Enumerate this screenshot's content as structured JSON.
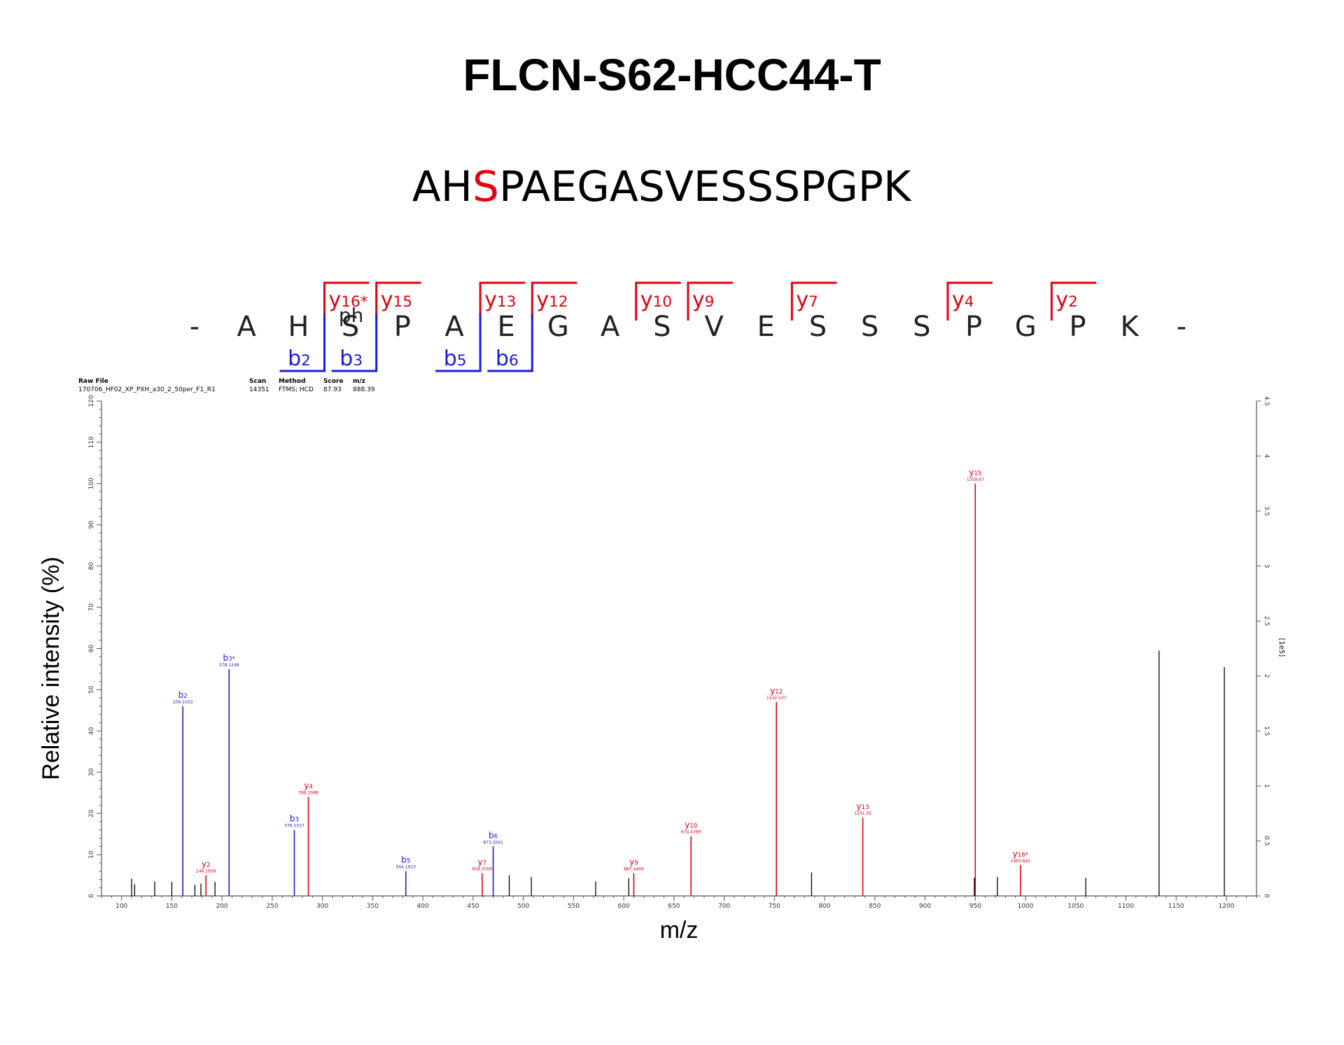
{
  "title": "FLCN-S62-HCC44-T",
  "sequence": {
    "prefix": "AH",
    "mod_residue": "S",
    "suffix": "PAEGASVESSSPGPK"
  },
  "fragment_map": {
    "residues": [
      "-",
      "A",
      "H",
      "S",
      "P",
      "A",
      "E",
      "G",
      "A",
      "S",
      "V",
      "E",
      "S",
      "S",
      "S",
      "P",
      "G",
      "P",
      "K",
      "-"
    ],
    "mod_label": "ph",
    "y_ions": [
      {
        "label": "y16*",
        "before": 3
      },
      {
        "label": "y15",
        "before": 4
      },
      {
        "label": "y13",
        "before": 6
      },
      {
        "label": "y12",
        "before": 7
      },
      {
        "label": "y10",
        "before": 9
      },
      {
        "label": "y9",
        "before": 10
      },
      {
        "label": "y7",
        "before": 12
      },
      {
        "label": "y4",
        "before": 15
      },
      {
        "label": "y2",
        "before": 17
      }
    ],
    "b_ions": [
      {
        "label": "b2",
        "after": 2
      },
      {
        "label": "b3",
        "after": 3
      },
      {
        "label": "b5",
        "after": 5
      },
      {
        "label": "b6",
        "after": 6
      }
    ]
  },
  "header_info": {
    "raw_file_label": "Raw File",
    "raw_file": "170706_HF02_XP_PXH_a30_2_50per_F1_R1",
    "scan_label": "Scan",
    "scan": "14351",
    "method_label": "Method",
    "method": "FTMS; HCD",
    "score_label": "Score",
    "score": "87.93",
    "mz_label": "m/z",
    "mz": "888.39"
  },
  "colors": {
    "y_ion": "#e3000f",
    "b_ion": "#1a1adb",
    "unassigned": "#000000",
    "mod": "#e3000f"
  },
  "chart_data": {
    "type": "bar",
    "xlabel": "m/z",
    "ylabel": "Relative intensity (%)",
    "y2label": "[1e5]",
    "xlim": [
      80,
      1230
    ],
    "ylim": [
      0,
      120
    ],
    "y2lim": [
      0,
      4.5
    ],
    "x_ticks": [
      100,
      150,
      200,
      250,
      300,
      350,
      400,
      450,
      500,
      550,
      600,
      650,
      700,
      750,
      800,
      850,
      900,
      950,
      1000,
      1050,
      1100,
      1150,
      1200
    ],
    "y_ticks": [
      0,
      10,
      20,
      30,
      40,
      50,
      60,
      70,
      80,
      90,
      100,
      110,
      120
    ],
    "y2_ticks": [
      0,
      0.5,
      1,
      1.5,
      2,
      2.5,
      3,
      3.5,
      4,
      4.5
    ],
    "assigned_peaks": [
      {
        "mz": 161.0,
        "intensity": 46,
        "ion": "b",
        "label": "b2",
        "mz_label": "209.1033"
      },
      {
        "mz": 184.0,
        "intensity": 5,
        "ion": "y",
        "label": "y2",
        "mz_label": "244.1656"
      },
      {
        "mz": 207.0,
        "intensity": 55,
        "ion": "b",
        "label": "b3*",
        "mz_label": "278.1248"
      },
      {
        "mz": 272.0,
        "intensity": 16,
        "ion": "b",
        "label": "b3",
        "mz_label": "376.1017"
      },
      {
        "mz": 286.0,
        "intensity": 24,
        "ion": "y",
        "label": "y4",
        "mz_label": "398.2088"
      },
      {
        "mz": 383.0,
        "intensity": 6,
        "ion": "b",
        "label": "b5",
        "mz_label": "544.1915"
      },
      {
        "mz": 459.0,
        "intensity": 5.5,
        "ion": "y",
        "label": "y7",
        "mz_label": "658.3309"
      },
      {
        "mz": 470.0,
        "intensity": 12,
        "ion": "b",
        "label": "b6",
        "mz_label": "673.2041"
      },
      {
        "mz": 610.0,
        "intensity": 5.5,
        "ion": "y",
        "label": "y9",
        "mz_label": "887.4469"
      },
      {
        "mz": 667.0,
        "intensity": 14.5,
        "ion": "y",
        "label": "y10",
        "mz_label": "974.4789"
      },
      {
        "mz": 752.0,
        "intensity": 47,
        "ion": "y",
        "label": "y12",
        "mz_label": "1132.537"
      },
      {
        "mz": 838.0,
        "intensity": 19,
        "ion": "y",
        "label": "y13",
        "mz_label": "1231.55"
      },
      {
        "mz": 950.0,
        "intensity": 100,
        "ion": "y",
        "label": "y15",
        "mz_label": "1359.67"
      },
      {
        "mz": 995.0,
        "intensity": 7.5,
        "ion": "y",
        "label": "y16*",
        "mz_label": "1465.691"
      }
    ],
    "unassigned_peaks": [
      {
        "mz": 110,
        "intensity": 4.2
      },
      {
        "mz": 113,
        "intensity": 2.8
      },
      {
        "mz": 133,
        "intensity": 3.5
      },
      {
        "mz": 150,
        "intensity": 3.4
      },
      {
        "mz": 173,
        "intensity": 2.7
      },
      {
        "mz": 179,
        "intensity": 3.0
      },
      {
        "mz": 193,
        "intensity": 3.4
      },
      {
        "mz": 486,
        "intensity": 5.0
      },
      {
        "mz": 508,
        "intensity": 4.6
      },
      {
        "mz": 572,
        "intensity": 3.5
      },
      {
        "mz": 605,
        "intensity": 4.3
      },
      {
        "mz": 787,
        "intensity": 5.7
      },
      {
        "mz": 949,
        "intensity": 4.4
      },
      {
        "mz": 972,
        "intensity": 4.6
      },
      {
        "mz": 1060,
        "intensity": 4.4
      },
      {
        "mz": 1133,
        "intensity": 59.5
      },
      {
        "mz": 1198,
        "intensity": 55.5
      }
    ]
  }
}
